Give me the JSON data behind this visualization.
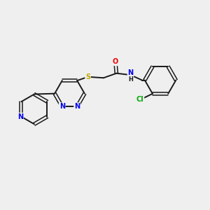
{
  "background_color": "#efefef",
  "bond_color": "#1a1a1a",
  "atom_colors": {
    "N": "#0000ee",
    "O": "#ee0000",
    "S": "#bbaa00",
    "Cl": "#00aa00",
    "C": "#1a1a1a",
    "H": "#1a1a1a"
  },
  "figsize": [
    3.0,
    3.0
  ],
  "dpi": 100
}
